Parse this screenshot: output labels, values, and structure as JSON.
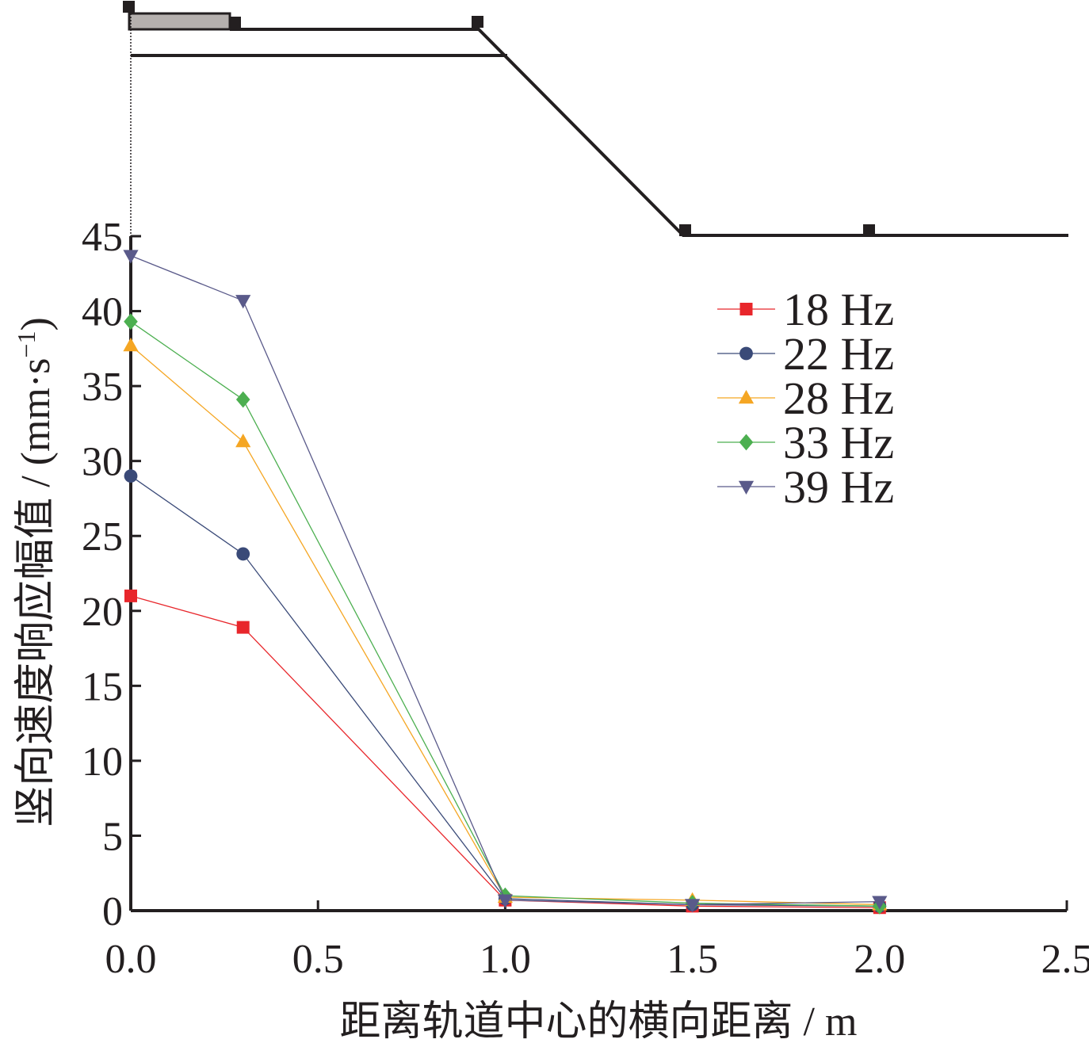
{
  "chart_data": {
    "type": "line",
    "xlabel": "距离轨道中心的横向距离 / m",
    "ylabel": "竖向速度响应幅值 / (mm·s",
    "ylabel_sup": "−1",
    "ylabel_close": ")",
    "xlim": [
      0,
      2.5
    ],
    "ylim": [
      0,
      45
    ],
    "xticks": [
      "0.0",
      "0.5",
      "1.0",
      "1.5",
      "2.0",
      "2.5"
    ],
    "yticks": [
      "0",
      "5",
      "10",
      "15",
      "20",
      "25",
      "30",
      "35",
      "40",
      "45"
    ],
    "x": [
      0.0,
      0.3,
      1.0,
      1.5,
      2.0
    ],
    "series": [
      {
        "name": "18 Hz",
        "color": "#e8262b",
        "marker": "square",
        "values": [
          21.0,
          18.9,
          0.7,
          0.3,
          0.2
        ]
      },
      {
        "name": "22 Hz",
        "color": "#3a4a78",
        "marker": "circle",
        "values": [
          29.0,
          23.8,
          0.8,
          0.4,
          0.3
        ]
      },
      {
        "name": "28 Hz",
        "color": "#f5a623",
        "marker": "triangle-up",
        "values": [
          37.7,
          31.3,
          0.9,
          0.7,
          0.4
        ]
      },
      {
        "name": "33 Hz",
        "color": "#4caf50",
        "marker": "diamond",
        "values": [
          39.3,
          34.1,
          1.0,
          0.5,
          0.3
        ]
      },
      {
        "name": "39 Hz",
        "color": "#5a5a8a",
        "marker": "triangle-down",
        "values": [
          43.7,
          40.7,
          0.7,
          0.4,
          0.6
        ]
      }
    ],
    "legend_position": "top-right",
    "grid": false
  },
  "cross_section": {
    "description_hidden": ""
  }
}
